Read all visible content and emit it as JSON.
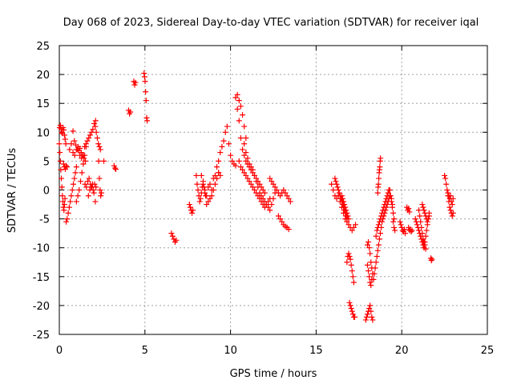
{
  "chart_data": {
    "type": "scatter",
    "title": "Day 068 of 2023, Sidereal Day-to-day VTEC variation (SDTVAR) for receiver iqal",
    "xlabel": "GPS time / hours",
    "ylabel": "SDTVAR / TECUs",
    "xlim": [
      0,
      25
    ],
    "ylim": [
      -25,
      25
    ],
    "x_ticks": [
      "0",
      "5",
      "10",
      "15",
      "20",
      "25"
    ],
    "y_ticks": [
      "-25",
      "-20",
      "-15",
      "-10",
      "-5",
      "0",
      "5",
      "10",
      "15",
      "20",
      "25"
    ],
    "grid": true,
    "marker": "plus",
    "marker_color": "#ff0000",
    "series": [
      {
        "name": "seg-00",
        "x": [
          0.0,
          0.03,
          0.06,
          0.09,
          0.12,
          0.15,
          0.18,
          0.21,
          0.24,
          0.27,
          0.3,
          0.33
        ],
        "y": [
          8.0,
          6.5,
          5.0,
          3.5,
          2.0,
          0.5,
          -1.0,
          -2.0,
          -3.0,
          -3.5,
          -2.5,
          -1.5
        ]
      },
      {
        "name": "seg-01",
        "x": [
          0.02,
          0.06,
          0.1,
          0.14,
          0.18,
          0.22,
          0.26,
          0.3,
          0.34,
          0.38
        ],
        "y": [
          10.8,
          11.2,
          10.6,
          10.0,
          9.8,
          10.8,
          10.4,
          9.5,
          8.8,
          8.0
        ]
      },
      {
        "name": "seg-02",
        "x": [
          0.25,
          0.3,
          0.35,
          0.4,
          0.45
        ],
        "y": [
          4.5,
          4.0,
          3.6,
          4.2,
          4.0
        ]
      },
      {
        "name": "seg-03",
        "x": [
          0.4,
          0.46,
          0.52,
          0.58,
          0.64,
          0.7,
          0.76,
          0.82,
          0.88,
          0.94,
          1.0
        ],
        "y": [
          -5.5,
          -5.0,
          -4.0,
          -3.0,
          -2.0,
          -1.0,
          0.0,
          1.0,
          2.0,
          3.0,
          4.0
        ]
      },
      {
        "name": "seg-04",
        "x": [
          0.6,
          0.7,
          0.8,
          0.9,
          1.0,
          1.1,
          1.2,
          1.3
        ],
        "y": [
          7.0,
          8.0,
          6.5,
          6.0,
          7.0,
          7.5,
          6.0,
          5.5
        ]
      },
      {
        "name": "seg-05",
        "x": [
          0.8,
          0.88,
          0.96,
          1.04,
          1.12,
          1.2,
          1.28,
          1.36,
          1.44,
          1.52
        ],
        "y": [
          10.2,
          8.5,
          7.8,
          7.0,
          6.8,
          7.2,
          6.5,
          6.0,
          5.5,
          5.0
        ]
      },
      {
        "name": "seg-06",
        "x": [
          1.0,
          1.08,
          1.16,
          1.24,
          1.32,
          1.4,
          1.48,
          1.56
        ],
        "y": [
          -2.0,
          -1.0,
          0.0,
          1.5,
          3.0,
          4.5,
          6.0,
          7.5
        ]
      },
      {
        "name": "seg-07",
        "x": [
          1.4,
          1.48,
          1.56,
          1.64,
          1.72,
          1.8,
          1.88,
          1.96,
          2.04,
          2.12
        ],
        "y": [
          6.0,
          7.5,
          8.0,
          8.5,
          9.0,
          9.5,
          10.0,
          10.5,
          11.5,
          12.0
        ]
      },
      {
        "name": "seg-08",
        "x": [
          1.5,
          1.58,
          1.66,
          1.74,
          1.82,
          1.9,
          1.98,
          2.06,
          2.14
        ],
        "y": [
          1.0,
          0.5,
          1.5,
          2.0,
          1.0,
          0.5,
          0.0,
          1.0,
          0.5
        ]
      },
      {
        "name": "seg-09",
        "x": [
          1.7,
          1.78,
          1.86,
          1.94,
          2.02,
          2.1
        ],
        "y": [
          -1.0,
          0.0,
          0.5,
          1.0,
          -0.5,
          -2.0
        ]
      },
      {
        "name": "seg-10",
        "x": [
          2.1,
          2.16,
          2.22,
          2.28,
          2.34,
          2.4
        ],
        "y": [
          11.0,
          10.0,
          9.0,
          8.0,
          7.5,
          7.0
        ]
      },
      {
        "name": "seg-11",
        "x": [
          2.3,
          2.34,
          2.38,
          2.42,
          2.46
        ],
        "y": [
          5.0,
          2.0,
          0.0,
          -1.0,
          -0.5
        ]
      },
      {
        "name": "seg-12",
        "x": [
          2.6
        ],
        "y": [
          5.0
        ]
      },
      {
        "name": "seg-13",
        "x": [
          3.2,
          3.25,
          3.3
        ],
        "y": [
          4.2,
          3.8,
          3.6
        ]
      },
      {
        "name": "seg-14",
        "x": [
          4.05,
          4.1,
          4.15
        ],
        "y": [
          13.8,
          13.2,
          13.5
        ]
      },
      {
        "name": "seg-15",
        "x": [
          4.35,
          4.4,
          4.45
        ],
        "y": [
          18.8,
          18.2,
          18.6
        ]
      },
      {
        "name": "seg-16",
        "x": [
          4.95,
          4.98,
          5.01,
          5.04,
          5.07,
          5.1,
          5.13
        ],
        "y": [
          20.2,
          19.6,
          18.8,
          17.0,
          15.5,
          12.5,
          12.0
        ]
      },
      {
        "name": "seg-17",
        "x": [
          6.55,
          6.62,
          6.69,
          6.76,
          6.83
        ],
        "y": [
          -7.5,
          -8.0,
          -8.5,
          -9.0,
          -8.7
        ]
      },
      {
        "name": "seg-18",
        "x": [
          7.6,
          7.65,
          7.7,
          7.75,
          7.8
        ],
        "y": [
          -2.5,
          -3.0,
          -3.5,
          -4.0,
          -3.5
        ]
      },
      {
        "name": "seg-19",
        "x": [
          8.0,
          8.05,
          8.1,
          8.15,
          8.2,
          8.25,
          8.3,
          8.35,
          8.4,
          8.45,
          8.5,
          8.55,
          8.6
        ],
        "y": [
          2.5,
          1.0,
          0.0,
          -1.0,
          -2.0,
          -1.5,
          -0.5,
          0.5,
          1.0,
          0.5,
          -0.5,
          -1.0,
          -2.5
        ]
      },
      {
        "name": "seg-20",
        "x": [
          8.3,
          8.4,
          8.5,
          8.6,
          8.7,
          8.8,
          8.9,
          9.0,
          9.1,
          9.2,
          9.3,
          9.4
        ],
        "y": [
          2.5,
          1.5,
          0.0,
          -1.0,
          0.5,
          1.0,
          0.0,
          2.0,
          2.5,
          2.0,
          3.0,
          2.5
        ]
      },
      {
        "name": "seg-21",
        "x": [
          8.7,
          8.8,
          8.9,
          9.0,
          9.1,
          9.2,
          9.3
        ],
        "y": [
          -2.0,
          -1.5,
          -1.0,
          0.0,
          1.0,
          2.0,
          3.0
        ]
      },
      {
        "name": "seg-22",
        "x": [
          9.2,
          9.3,
          9.4,
          9.5,
          9.6,
          9.7,
          9.8,
          9.9,
          10.0,
          10.1,
          10.2,
          10.3
        ],
        "y": [
          4.0,
          5.0,
          6.5,
          7.5,
          8.5,
          10.0,
          11.0,
          8.0,
          6.0,
          5.0,
          4.5,
          4.2
        ]
      },
      {
        "name": "seg-23",
        "x": [
          10.3,
          10.4,
          10.5,
          10.6,
          10.7,
          10.8,
          10.9
        ],
        "y": [
          16.0,
          16.5,
          15.5,
          14.5,
          13.0,
          11.0,
          9.0
        ]
      },
      {
        "name": "seg-24",
        "x": [
          10.4,
          10.5,
          10.6,
          10.7,
          10.8,
          10.9,
          11.0,
          11.1,
          11.2,
          11.3,
          11.4,
          11.5,
          11.6,
          11.7,
          11.8,
          11.9,
          12.0
        ],
        "y": [
          14.0,
          12.0,
          9.0,
          7.0,
          6.0,
          5.0,
          4.5,
          4.0,
          3.5,
          3.0,
          2.5,
          2.0,
          1.5,
          1.0,
          0.5,
          0.0,
          -0.5
        ]
      },
      {
        "name": "seg-25",
        "x": [
          10.5,
          10.6,
          10.7,
          10.8,
          10.9,
          11.0,
          11.1,
          11.2,
          11.3,
          11.4,
          11.5,
          11.6,
          11.7,
          11.8,
          11.9,
          12.0,
          12.1,
          12.2,
          12.3
        ],
        "y": [
          5.0,
          4.0,
          3.5,
          3.0,
          2.5,
          2.0,
          1.5,
          1.0,
          0.5,
          0.0,
          -0.5,
          -1.0,
          -1.5,
          -2.0,
          -2.5,
          -3.0,
          -2.5,
          -2.0,
          -1.5
        ]
      },
      {
        "name": "seg-26",
        "x": [
          10.8,
          10.9,
          11.0,
          11.1,
          11.2,
          11.3,
          11.4,
          11.5,
          11.6,
          11.7,
          11.8,
          11.9,
          12.0,
          12.1,
          12.2,
          12.3,
          12.4,
          12.5,
          12.6
        ],
        "y": [
          8.0,
          6.5,
          5.5,
          4.5,
          4.0,
          3.5,
          2.5,
          1.5,
          0.5,
          -0.5,
          -1.0,
          -1.5,
          -2.0,
          -2.5,
          -3.0,
          -3.5,
          -2.5,
          -1.5,
          -0.5
        ]
      },
      {
        "name": "seg-27",
        "x": [
          12.3,
          12.4,
          12.5,
          12.6,
          12.7,
          12.8,
          12.9,
          13.0,
          13.1,
          13.2,
          13.3,
          13.4,
          13.5
        ],
        "y": [
          2.0,
          1.5,
          1.0,
          0.5,
          0.0,
          -0.5,
          -1.0,
          -0.5,
          0.0,
          -0.5,
          -1.0,
          -1.5,
          -2.0
        ]
      },
      {
        "name": "seg-28",
        "x": [
          12.8,
          12.9,
          13.0,
          13.1,
          13.2,
          13.3,
          13.4
        ],
        "y": [
          -4.5,
          -5.0,
          -5.5,
          -6.0,
          -6.3,
          -6.5,
          -6.8
        ]
      },
      {
        "name": "seg-29",
        "x": [
          15.9,
          16.0,
          16.1,
          16.2,
          16.3,
          16.4,
          16.5,
          16.6,
          16.7,
          16.8,
          16.9,
          17.0,
          17.1,
          17.2,
          17.3
        ],
        "y": [
          1.0,
          0.0,
          -1.0,
          -1.5,
          -1.0,
          -2.0,
          -3.0,
          -4.0,
          -5.0,
          -5.5,
          -6.0,
          -6.5,
          -7.0,
          -6.5,
          -6.0
        ]
      },
      {
        "name": "seg-30",
        "x": [
          16.1,
          16.15,
          16.2,
          16.25,
          16.3,
          16.35,
          16.4,
          16.45,
          16.5,
          16.55,
          16.6,
          16.65,
          16.7,
          16.75,
          16.8
        ],
        "y": [
          2.0,
          1.5,
          1.0,
          0.5,
          0.0,
          -0.5,
          -1.0,
          -1.5,
          -2.0,
          -2.5,
          -3.0,
          -3.5,
          -4.0,
          -4.5,
          -5.0
        ]
      },
      {
        "name": "seg-31",
        "x": [
          16.5,
          16.55,
          16.6,
          16.65,
          16.7,
          16.75,
          16.8,
          16.85,
          16.9
        ],
        "y": [
          -1.0,
          -1.5,
          -2.0,
          -2.5,
          -3.0,
          -3.5,
          -4.0,
          -4.5,
          -5.0
        ]
      },
      {
        "name": "seg-32",
        "x": [
          16.8,
          16.85,
          16.9,
          16.95,
          17.0,
          17.05,
          17.1,
          17.15,
          17.2
        ],
        "y": [
          -12.5,
          -11.5,
          -11.0,
          -11.5,
          -12.0,
          -13.0,
          -14.0,
          -15.0,
          -16.0
        ]
      },
      {
        "name": "seg-33",
        "x": [
          16.95,
          17.0,
          17.05,
          17.1,
          17.15,
          17.2,
          17.25
        ],
        "y": [
          -19.5,
          -20.0,
          -20.5,
          -21.0,
          -21.5,
          -22.0,
          -22.0
        ]
      },
      {
        "name": "seg-34",
        "x": [
          17.9,
          17.95,
          18.0,
          18.05,
          18.1,
          18.15,
          18.2,
          18.25,
          18.3
        ],
        "y": [
          -22.5,
          -22.0,
          -21.5,
          -21.0,
          -20.5,
          -20.0,
          -21.0,
          -22.0,
          -22.5
        ]
      },
      {
        "name": "seg-35",
        "x": [
          18.0,
          18.05,
          18.1,
          18.15,
          18.2,
          18.25,
          18.3,
          18.35
        ],
        "y": [
          -9.5,
          -9.0,
          -10.0,
          -11.0,
          -12.5,
          -13.5,
          -14.5,
          -15.5
        ]
      },
      {
        "name": "seg-36",
        "x": [
          18.0,
          18.05,
          18.1,
          18.15,
          18.2,
          18.25
        ],
        "y": [
          -13.0,
          -14.0,
          -15.0,
          -16.0,
          -16.5,
          -15.5
        ]
      },
      {
        "name": "seg-37",
        "x": [
          18.4,
          18.45,
          18.5,
          18.55,
          18.6,
          18.65,
          18.7,
          18.75,
          18.8,
          18.85,
          18.9,
          18.95,
          19.0,
          19.05,
          19.1,
          19.15,
          19.2,
          19.25,
          19.3
        ],
        "y": [
          -14.5,
          -13.5,
          -12.5,
          -11.5,
          -10.5,
          -9.5,
          -8.5,
          -7.5,
          -6.5,
          -5.5,
          -5.0,
          -4.5,
          -4.0,
          -3.5,
          -3.0,
          -2.5,
          -2.0,
          -1.5,
          -1.0
        ]
      },
      {
        "name": "seg-38",
        "x": [
          18.5,
          18.55,
          18.6,
          18.65,
          18.7,
          18.75,
          18.8,
          18.85,
          18.9,
          18.95,
          19.0,
          19.05,
          19.1,
          19.15,
          19.2,
          19.25
        ],
        "y": [
          -8.0,
          -7.0,
          -6.5,
          -6.0,
          -5.5,
          -5.0,
          -4.5,
          -4.0,
          -3.5,
          -3.0,
          -2.5,
          -2.0,
          -1.5,
          -1.0,
          -0.5,
          0.0
        ]
      },
      {
        "name": "seg-39",
        "x": [
          18.6,
          18.62,
          18.64,
          18.66,
          18.68,
          18.7,
          18.72,
          18.74,
          18.76
        ],
        "y": [
          -0.5,
          0.5,
          1.0,
          2.0,
          3.0,
          3.5,
          4.0,
          5.0,
          5.5
        ]
      },
      {
        "name": "seg-40",
        "x": [
          19.3,
          19.35,
          19.4,
          19.45,
          19.5,
          19.55
        ],
        "y": [
          0.0,
          -1.0,
          -2.0,
          -3.0,
          -4.0,
          -5.0
        ]
      },
      {
        "name": "seg-41",
        "x": [
          19.4,
          19.45,
          19.5,
          19.55,
          19.6
        ],
        "y": [
          -1.5,
          -2.5,
          -5.5,
          -6.5,
          -7.0
        ]
      },
      {
        "name": "seg-42",
        "x": [
          19.9,
          19.95,
          20.0,
          20.05,
          20.1,
          20.15,
          20.2
        ],
        "y": [
          -5.5,
          -6.0,
          -6.5,
          -7.0,
          -7.2,
          -6.8,
          -7.5
        ]
      },
      {
        "name": "seg-43",
        "x": [
          20.3,
          20.35,
          20.4,
          20.45
        ],
        "y": [
          -3.0,
          -3.5,
          -3.2,
          -3.8
        ]
      },
      {
        "name": "seg-44",
        "x": [
          20.4,
          20.45,
          20.5,
          20.55,
          20.6
        ],
        "y": [
          -6.5,
          -7.0,
          -6.8,
          -7.2,
          -7.0
        ]
      },
      {
        "name": "seg-45",
        "x": [
          20.8,
          20.85,
          20.9,
          20.95,
          21.0,
          21.05,
          21.1,
          21.15,
          21.2,
          21.25,
          21.3,
          21.35,
          21.4,
          21.45,
          21.5,
          21.55,
          21.6
        ],
        "y": [
          -5.0,
          -5.5,
          -6.0,
          -6.5,
          -7.0,
          -7.5,
          -8.0,
          -8.5,
          -9.0,
          -9.5,
          -10.0,
          -9.0,
          -8.0,
          -7.0,
          -6.0,
          -5.0,
          -4.0
        ]
      },
      {
        "name": "seg-46",
        "x": [
          21.0,
          21.05,
          21.1,
          21.15,
          21.2,
          21.25,
          21.3,
          21.35,
          21.4
        ],
        "y": [
          -3.5,
          -4.5,
          -5.5,
          -6.5,
          -7.5,
          -8.5,
          -9.0,
          -9.5,
          -10.2
        ]
      },
      {
        "name": "seg-47",
        "x": [
          21.2,
          21.25,
          21.3,
          21.35,
          21.4,
          21.45,
          21.5,
          21.55,
          21.6
        ],
        "y": [
          -2.5,
          -3.0,
          -3.5,
          -4.0,
          -4.5,
          -5.0,
          -5.5,
          -5.0,
          -4.5
        ]
      },
      {
        "name": "seg-48",
        "x": [
          21.7,
          21.73,
          21.76
        ],
        "y": [
          -11.8,
          -12.2,
          -12.0
        ]
      },
      {
        "name": "seg-49",
        "x": [
          22.5,
          22.55,
          22.6,
          22.65,
          22.7,
          22.75,
          22.8,
          22.85,
          22.9,
          22.95,
          23.0
        ],
        "y": [
          2.5,
          2.0,
          1.0,
          0.0,
          -1.0,
          -2.0,
          -3.0,
          -3.5,
          -4.0,
          -4.5,
          -4.0
        ]
      },
      {
        "name": "seg-50",
        "x": [
          22.7,
          22.75,
          22.8,
          22.85,
          22.9,
          22.95,
          23.0
        ],
        "y": [
          -0.5,
          -1.0,
          -1.5,
          -1.0,
          -2.0,
          -2.5,
          -1.5
        ]
      }
    ]
  }
}
